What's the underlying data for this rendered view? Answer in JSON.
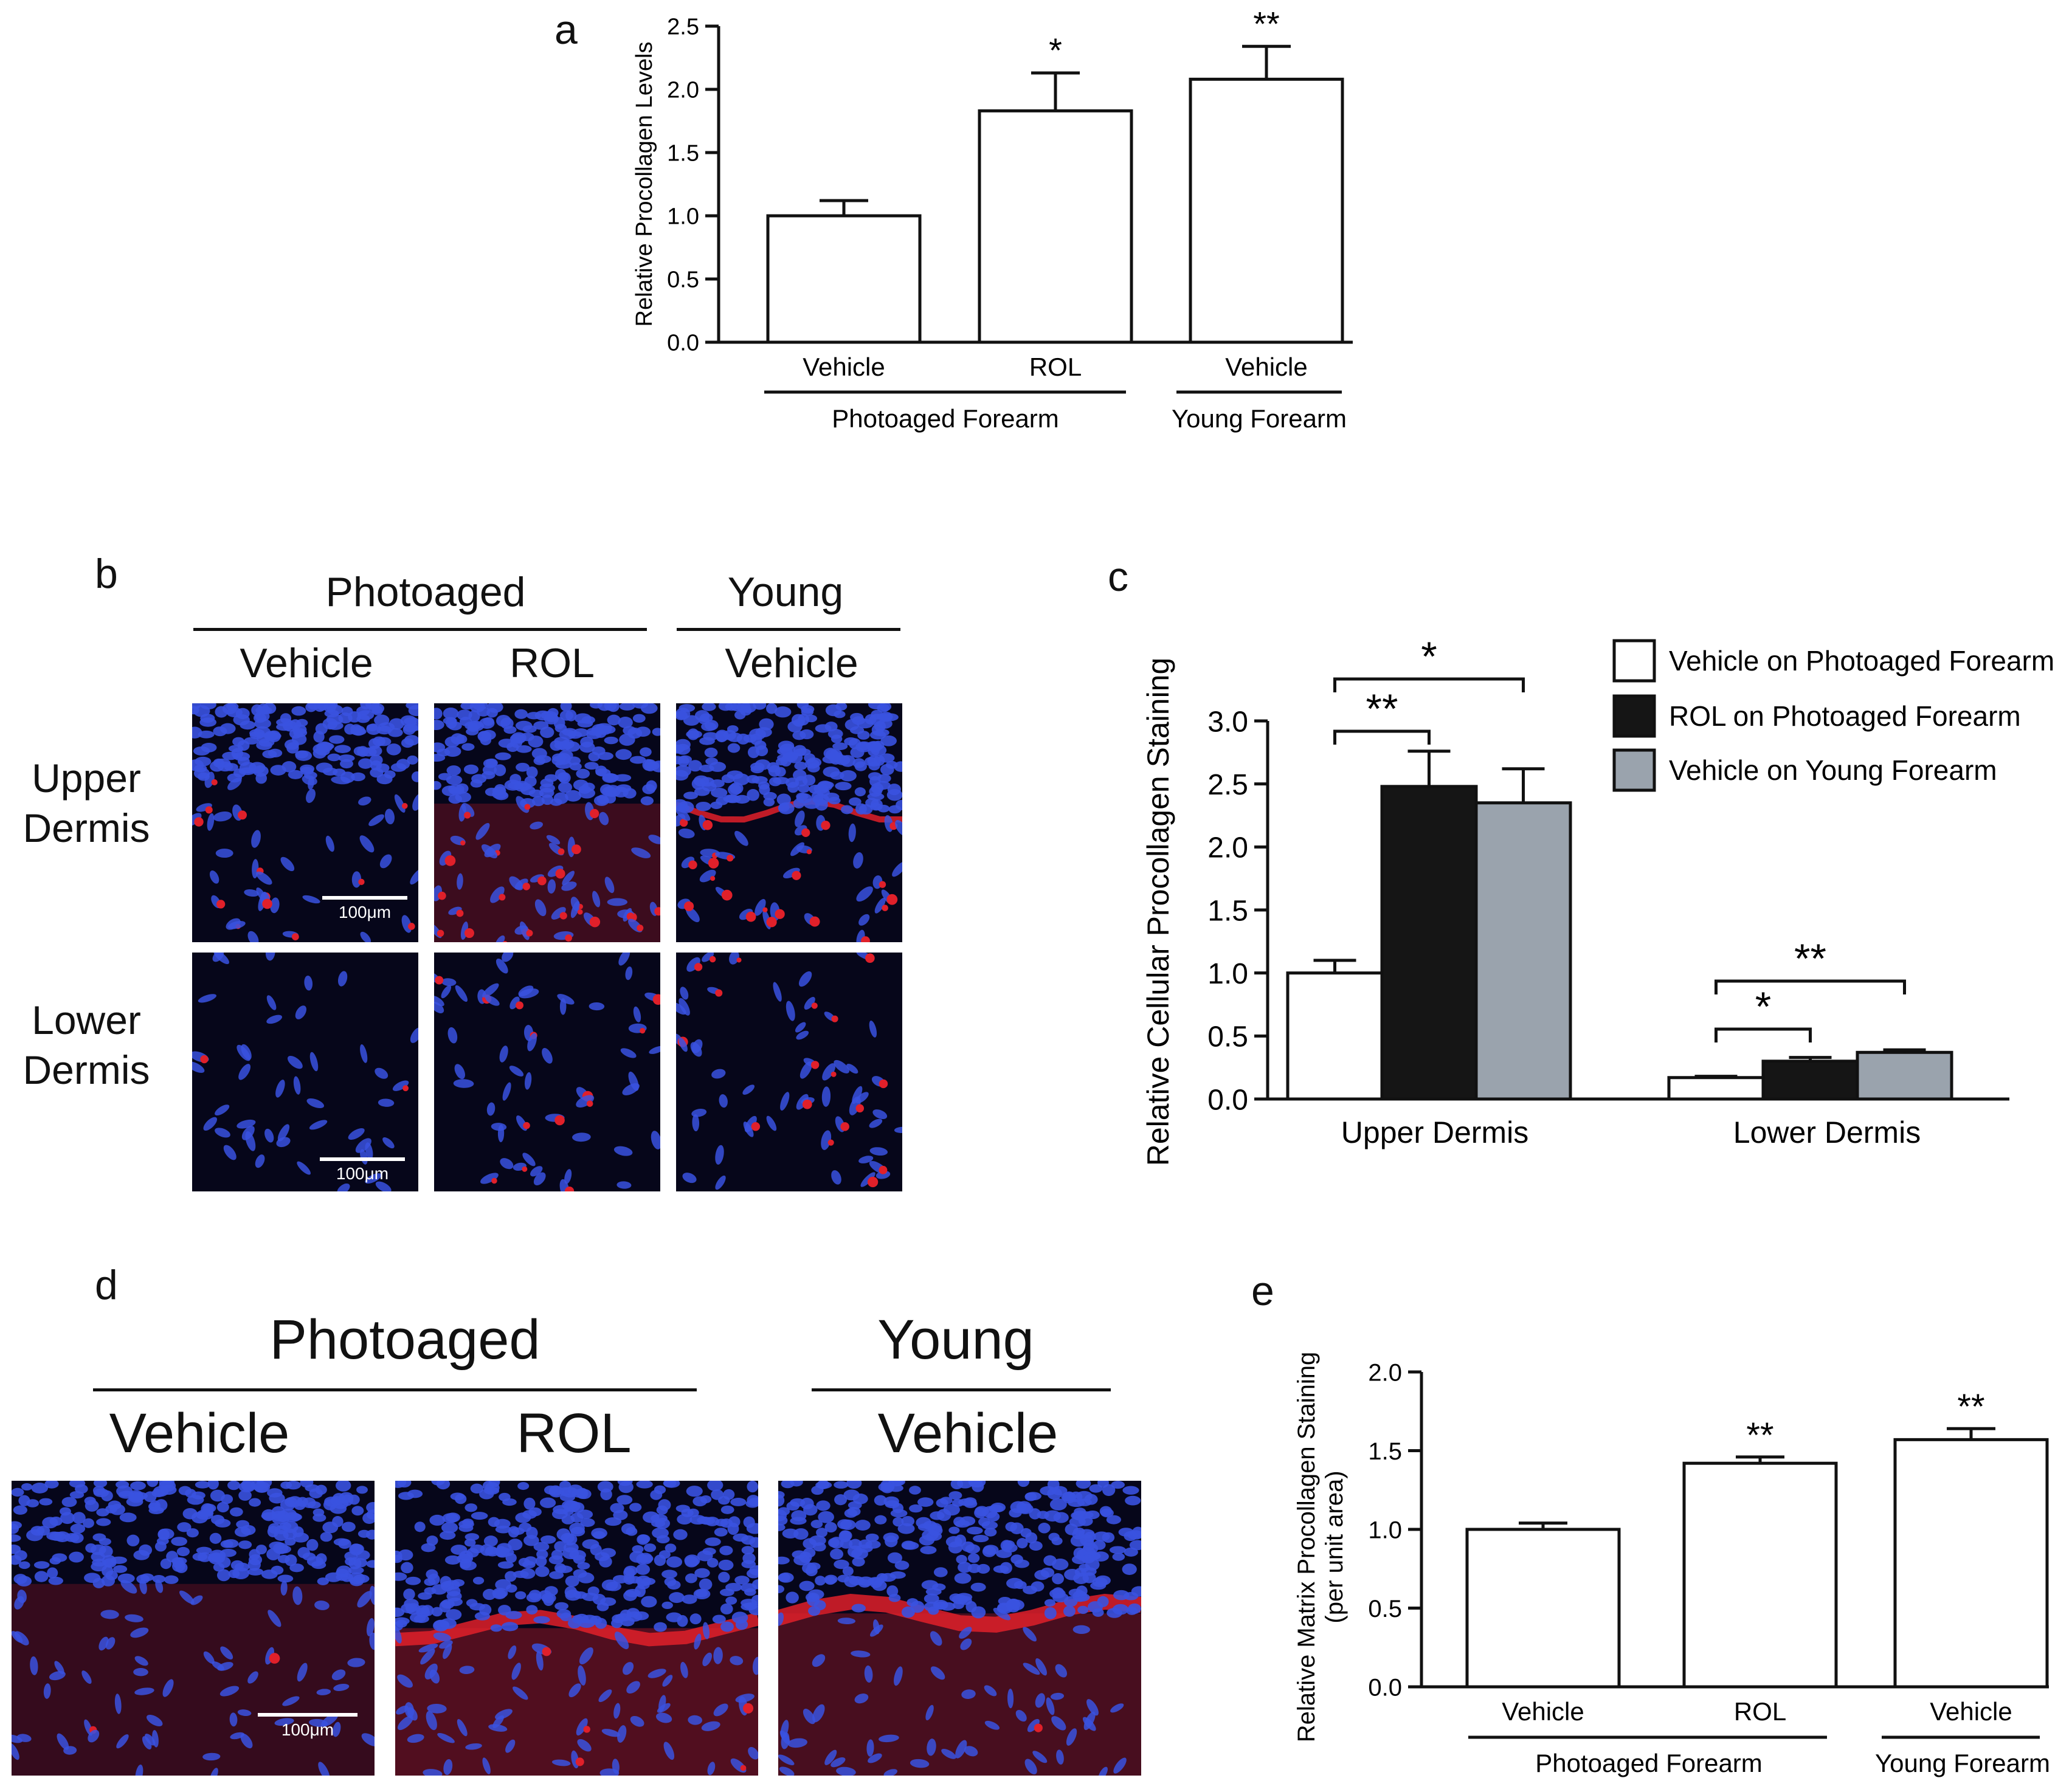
{
  "panels": {
    "a": {
      "letter": "a"
    },
    "b": {
      "letter": "b",
      "group_photoaged": "Photoaged",
      "group_young": "Young",
      "col_vehicle_1": "Vehicle",
      "col_rol": "ROL",
      "col_vehicle_2": "Vehicle",
      "row_upper": [
        "Upper",
        "Dermis"
      ],
      "row_lower": [
        "Lower",
        "Dermis"
      ],
      "scale_label": "100μm"
    },
    "c": {
      "letter": "c"
    },
    "d": {
      "letter": "d",
      "group_photoaged": "Photoaged",
      "group_young": "Young",
      "col_vehicle_1": "Vehicle",
      "col_rol": "ROL",
      "col_vehicle_2": "Vehicle",
      "scale_label": "100μm"
    },
    "e": {
      "letter": "e"
    }
  },
  "colors": {
    "nuclei": "#3a52e0",
    "procollagen": "#e0202a",
    "background": "#06061a",
    "bar_white": "#ffffff",
    "bar_black": "#151515",
    "bar_gray": "#9aa3ad"
  },
  "chart_data": [
    {
      "id": "a",
      "type": "bar",
      "categories": [
        "Vehicle",
        "ROL",
        "Vehicle"
      ],
      "values": [
        1.0,
        1.83,
        2.08
      ],
      "errors": [
        0.12,
        0.3,
        0.26
      ],
      "significance": [
        "",
        "*",
        "**"
      ],
      "groups": [
        {
          "label": "Photoaged Forearm",
          "categories": [
            0,
            1
          ]
        },
        {
          "label": "Young Forearm",
          "categories": [
            2
          ]
        }
      ],
      "xlabel": "",
      "ylabel": "Relative Procollagen Levels",
      "ylim": [
        0,
        2.5
      ],
      "yticks": [
        "0.0",
        "0.5",
        "1.0",
        "1.5",
        "2.0",
        "2.5"
      ],
      "grid": false
    },
    {
      "id": "c",
      "type": "bar",
      "categories": [
        "Upper Dermis",
        "Lower Dermis"
      ],
      "series": [
        {
          "name": "Vehicle on Photoaged Forearm",
          "color": "#ffffff",
          "values": [
            1.0,
            0.17
          ],
          "errors": [
            0.1,
            0.01
          ]
        },
        {
          "name": "ROL on Photoaged Forearm",
          "color": "#151515",
          "values": [
            2.48,
            0.3
          ],
          "errors": [
            0.28,
            0.03
          ]
        },
        {
          "name": "Vehicle on Young Forearm",
          "color": "#9aa3ad",
          "values": [
            2.35,
            0.37
          ],
          "errors": [
            0.27,
            0.02
          ]
        }
      ],
      "comparisons": [
        {
          "category": 0,
          "from": 0,
          "to": 1,
          "label": "**"
        },
        {
          "category": 0,
          "from": 0,
          "to": 2,
          "label": "*"
        },
        {
          "category": 1,
          "from": 0,
          "to": 1,
          "label": "*"
        },
        {
          "category": 1,
          "from": 0,
          "to": 2,
          "label": "**"
        }
      ],
      "xlabel": "",
      "ylabel": "Relative Cellular Procollagen Staining",
      "ylim": [
        0,
        3.0
      ],
      "yticks": [
        "0.0",
        "0.5",
        "1.0",
        "1.5",
        "2.0",
        "2.5",
        "3.0"
      ],
      "legend_position": "top-right",
      "grid": false
    },
    {
      "id": "e",
      "type": "bar",
      "categories": [
        "Vehicle",
        "ROL",
        "Vehicle"
      ],
      "values": [
        1.0,
        1.42,
        1.57
      ],
      "errors": [
        0.04,
        0.04,
        0.07
      ],
      "significance": [
        "",
        "**",
        "**"
      ],
      "groups": [
        {
          "label": "Photoaged Forearm",
          "categories": [
            0,
            1
          ]
        },
        {
          "label": "Young Forearm",
          "categories": [
            2
          ]
        }
      ],
      "xlabel": "",
      "ylabel": "Relative Matrix Procollagen Staining",
      "ylabel2": "(per unit area)",
      "ylim": [
        0,
        2.0
      ],
      "yticks": [
        "0.0",
        "0.5",
        "1.0",
        "1.5",
        "2.0"
      ],
      "grid": false
    }
  ]
}
